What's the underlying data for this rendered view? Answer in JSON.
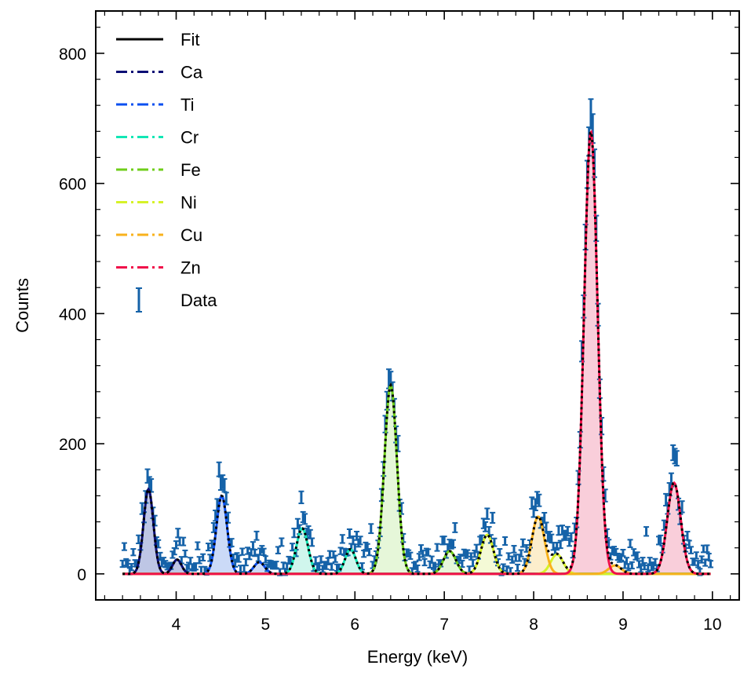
{
  "chart_data": {
    "type": "line",
    "xlabel": "Energy (keV)",
    "ylabel": "Counts",
    "xlim": [
      3.1,
      10.3
    ],
    "ylim": [
      -40,
      865
    ],
    "x_ticks": [
      4,
      5,
      6,
      7,
      8,
      9,
      10
    ],
    "y_ticks": [
      0,
      200,
      400,
      600,
      800
    ],
    "grid": false,
    "legend_position": "top-left",
    "legend": [
      {
        "label": "Fit",
        "color": "#000000",
        "style": "solid"
      },
      {
        "label": "Ca",
        "color": "#0b0e75",
        "style": "dashdot"
      },
      {
        "label": "Ti",
        "color": "#0a4ff0",
        "style": "dashdot"
      },
      {
        "label": "Cr",
        "color": "#12e7b5",
        "style": "dashdot"
      },
      {
        "label": "Fe",
        "color": "#6fce1a",
        "style": "dashdot"
      },
      {
        "label": "Ni",
        "color": "#d6f228",
        "style": "dashdot"
      },
      {
        "label": "Cu",
        "color": "#f8b21c",
        "style": "dashdot"
      },
      {
        "label": "Zn",
        "color": "#f0104a",
        "style": "dashdot"
      },
      {
        "label": "Data",
        "color": "#1562a8",
        "style": "errorbar"
      }
    ],
    "series": [
      {
        "name": "Ca",
        "color": "#0b0e75",
        "fill": "#b3bce0",
        "peaks": [
          {
            "center": 3.69,
            "amplitude": 130,
            "sigma": 0.055
          },
          {
            "center": 4.01,
            "amplitude": 22,
            "sigma": 0.05
          }
        ]
      },
      {
        "name": "Ti",
        "color": "#0a4ff0",
        "fill": "#c2d4f6",
        "peaks": [
          {
            "center": 4.51,
            "amplitude": 120,
            "sigma": 0.06
          },
          {
            "center": 4.93,
            "amplitude": 18,
            "sigma": 0.06
          }
        ]
      },
      {
        "name": "Cr",
        "color": "#12e7b5",
        "fill": "#c8f5ea",
        "peaks": [
          {
            "center": 5.41,
            "amplitude": 70,
            "sigma": 0.065
          },
          {
            "center": 5.95,
            "amplitude": 38,
            "sigma": 0.06
          }
        ]
      },
      {
        "name": "Fe",
        "color": "#6fce1a",
        "fill": "#e2f6d2",
        "peaks": [
          {
            "center": 6.4,
            "amplitude": 290,
            "sigma": 0.07
          },
          {
            "center": 7.06,
            "amplitude": 35,
            "sigma": 0.07
          }
        ]
      },
      {
        "name": "Ni",
        "color": "#d6f228",
        "fill": "#f2f9cf",
        "peaks": [
          {
            "center": 7.48,
            "amplitude": 60,
            "sigma": 0.07
          },
          {
            "center": 8.26,
            "amplitude": 30,
            "sigma": 0.07
          }
        ]
      },
      {
        "name": "Cu",
        "color": "#f8b21c",
        "fill": "#fcebc3",
        "peaks": [
          {
            "center": 8.05,
            "amplitude": 88,
            "sigma": 0.07
          },
          {
            "center": 8.91,
            "amplitude": 13,
            "sigma": 0.07
          }
        ]
      },
      {
        "name": "Zn",
        "color": "#f0104a",
        "fill": "#f8c6d3",
        "peaks": [
          {
            "center": 8.64,
            "amplitude": 680,
            "sigma": 0.075
          },
          {
            "center": 9.57,
            "amplitude": 140,
            "sigma": 0.075
          }
        ]
      }
    ],
    "data_points": {
      "x_start": 3.4,
      "x_end": 9.98,
      "step": 0.02,
      "error_scale": 1.0
    }
  }
}
